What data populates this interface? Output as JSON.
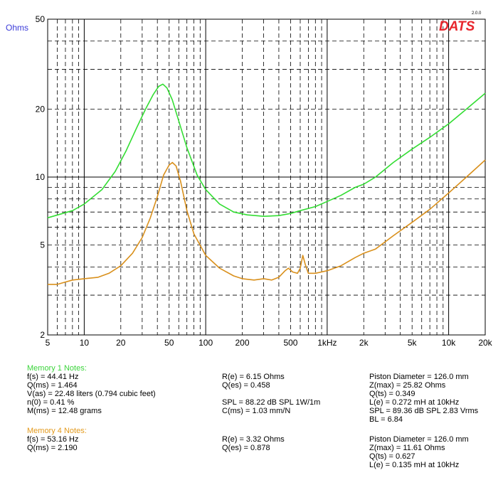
{
  "chart_data": {
    "type": "line",
    "x_scale": "log",
    "y_scale": "log",
    "xlim": [
      5,
      20000
    ],
    "ylim": [
      2,
      50
    ],
    "ylabel": "Ohms",
    "x_ticks": [
      {
        "value": 5,
        "label": "5"
      },
      {
        "value": 10,
        "label": "10"
      },
      {
        "value": 20,
        "label": "20"
      },
      {
        "value": 50,
        "label": "50"
      },
      {
        "value": 100,
        "label": "100"
      },
      {
        "value": 200,
        "label": "200"
      },
      {
        "value": 500,
        "label": "500"
      },
      {
        "value": 1000,
        "label": "1kHz"
      },
      {
        "value": 2000,
        "label": "2k"
      },
      {
        "value": 5000,
        "label": "5k"
      },
      {
        "value": 10000,
        "label": "10k"
      },
      {
        "value": 20000,
        "label": "20k"
      }
    ],
    "y_ticks": [
      {
        "value": 2,
        "label": "2"
      },
      {
        "value": 5,
        "label": "5"
      },
      {
        "value": 10,
        "label": "10"
      },
      {
        "value": 20,
        "label": "20"
      },
      {
        "value": 50,
        "label": "50"
      }
    ],
    "grid": true,
    "logo": {
      "text": "DATS",
      "version": "2.0.0",
      "color": "#e8262d"
    },
    "series": [
      {
        "color": "#33dd33",
        "x": [
          5,
          8,
          10,
          14,
          18,
          22,
          27,
          32,
          37,
          41,
          44.4,
          48,
          53,
          60,
          70,
          85,
          100,
          130,
          170,
          220,
          300,
          400,
          500,
          600,
          800,
          1000,
          1300,
          1700,
          2000,
          2500,
          3500,
          5000,
          7000,
          10000,
          14000,
          20000
        ],
        "y": [
          6.6,
          7.1,
          7.6,
          8.8,
          10.6,
          13.0,
          16.5,
          20.0,
          23.2,
          25.2,
          25.8,
          24.8,
          22.0,
          17.7,
          13.5,
          10.2,
          8.8,
          7.6,
          7.0,
          6.8,
          6.7,
          6.75,
          6.9,
          7.1,
          7.4,
          7.8,
          8.3,
          9.0,
          9.3,
          10.0,
          11.6,
          13.3,
          15.0,
          17.2,
          20.0,
          23.5
        ]
      },
      {
        "color": "#d9901c",
        "x": [
          5,
          6,
          8,
          10,
          13,
          16,
          20,
          25,
          30,
          35,
          40,
          45,
          50,
          53.2,
          57,
          62,
          70,
          80,
          100,
          130,
          170,
          200,
          250,
          300,
          350,
          400,
          450,
          480,
          520,
          570,
          600,
          630,
          660,
          700,
          800,
          1000,
          1300,
          1700,
          2000,
          2500,
          3500,
          5000,
          7000,
          10000,
          14000,
          20000
        ],
        "y": [
          3.35,
          3.35,
          3.5,
          3.55,
          3.6,
          3.75,
          4.05,
          4.6,
          5.4,
          6.6,
          8.2,
          10.2,
          11.3,
          11.6,
          11.2,
          9.6,
          7.1,
          5.6,
          4.5,
          3.95,
          3.65,
          3.55,
          3.5,
          3.55,
          3.5,
          3.6,
          3.85,
          3.95,
          3.8,
          3.75,
          3.95,
          4.5,
          4.1,
          3.75,
          3.75,
          3.85,
          4.05,
          4.4,
          4.6,
          4.8,
          5.5,
          6.3,
          7.2,
          8.5,
          10.0,
          11.9
        ]
      }
    ]
  },
  "notes": {
    "memory1": {
      "title": "Memory 1 Notes:",
      "col1": [
        "f(s) = 44.41 Hz",
        "Q(ms) = 1.464",
        "V(as) = 22.48 liters  (0.794 cubic feet)",
        "n(0) = 0.41 %",
        "M(ms) = 12.48 grams"
      ],
      "col2": [
        "R(e) = 6.15 Ohms",
        "Q(es) = 0.458",
        "",
        "SPL = 88.22 dB SPL 1W/1m",
        "C(ms) = 1.03 mm/N"
      ],
      "col3": [
        "Piston Diameter = 126.0 mm",
        "Z(max) = 25.82 Ohms",
        "Q(ts) = 0.349",
        "L(e) = 0.272 mH at 10kHz",
        "SPL = 89.36 dB SPL 2.83 Vrms",
        "BL = 6.84"
      ]
    },
    "memory4": {
      "title": "Memory 4 Notes:",
      "col1": [
        "f(s) = 53.16 Hz",
        "Q(ms) = 2.190"
      ],
      "col2": [
        "R(e) = 3.32 Ohms",
        "Q(es) = 0.878"
      ],
      "col3": [
        "Piston Diameter = 126.0 mm",
        "Z(max) = 11.61 Ohms",
        "Q(ts) = 0.627",
        "L(e) = 0.135 mH at 10kHz"
      ]
    }
  }
}
